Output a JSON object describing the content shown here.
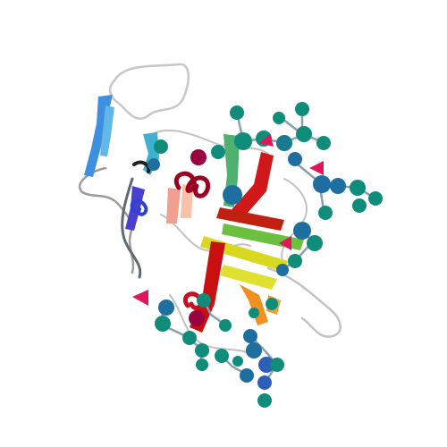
{
  "scene": {
    "background": "#ffffff",
    "colors": {
      "coil": "#bdbdbd",
      "coil_dark": "#6b6b6b",
      "glycan_sphere": "#0f8c7a",
      "glycan_sphere_alt": "#1e6fa0",
      "glycan_sphere_blue": "#2b5fb8",
      "glycan_triangle": "#e0185a",
      "glycan_stick": "#8aa0b0",
      "strand_blue": "#3f8fe0",
      "strand_indigo": "#4b3fd0",
      "strand_cyan": "#40b0d0",
      "strand_green": "#6cc040",
      "strand_yellow": "#d8d820",
      "strand_orange": "#f09020",
      "strand_red": "#c81010",
      "helix_darkred": "#9a0020"
    }
  }
}
